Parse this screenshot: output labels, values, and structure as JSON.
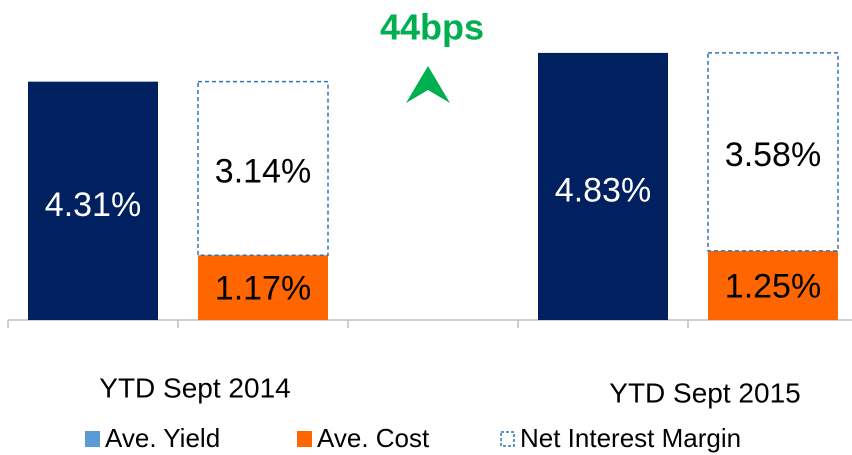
{
  "chart_data": {
    "type": "bar",
    "annotation": "44bps",
    "annotation_color": "#00b050",
    "categories": [
      "YTD Sept 2014",
      "YTD Sept 2015"
    ],
    "series": [
      {
        "name": "Ave. Yield",
        "color": "#002060",
        "legend_color": "#5b9bd5",
        "values": [
          4.31,
          4.83
        ],
        "value_labels": [
          "4.31%",
          "4.83%"
        ]
      },
      {
        "name": "Ave. Cost",
        "color": "#ff6600",
        "values": [
          1.17,
          1.25
        ],
        "value_labels": [
          "1.17%",
          "1.25%"
        ]
      },
      {
        "name": "Net Interest Margin",
        "color": "#2e75b6",
        "values": [
          3.14,
          3.58
        ],
        "value_labels": [
          "3.14%",
          "3.58%"
        ]
      }
    ],
    "ylim": [
      0,
      5
    ]
  }
}
